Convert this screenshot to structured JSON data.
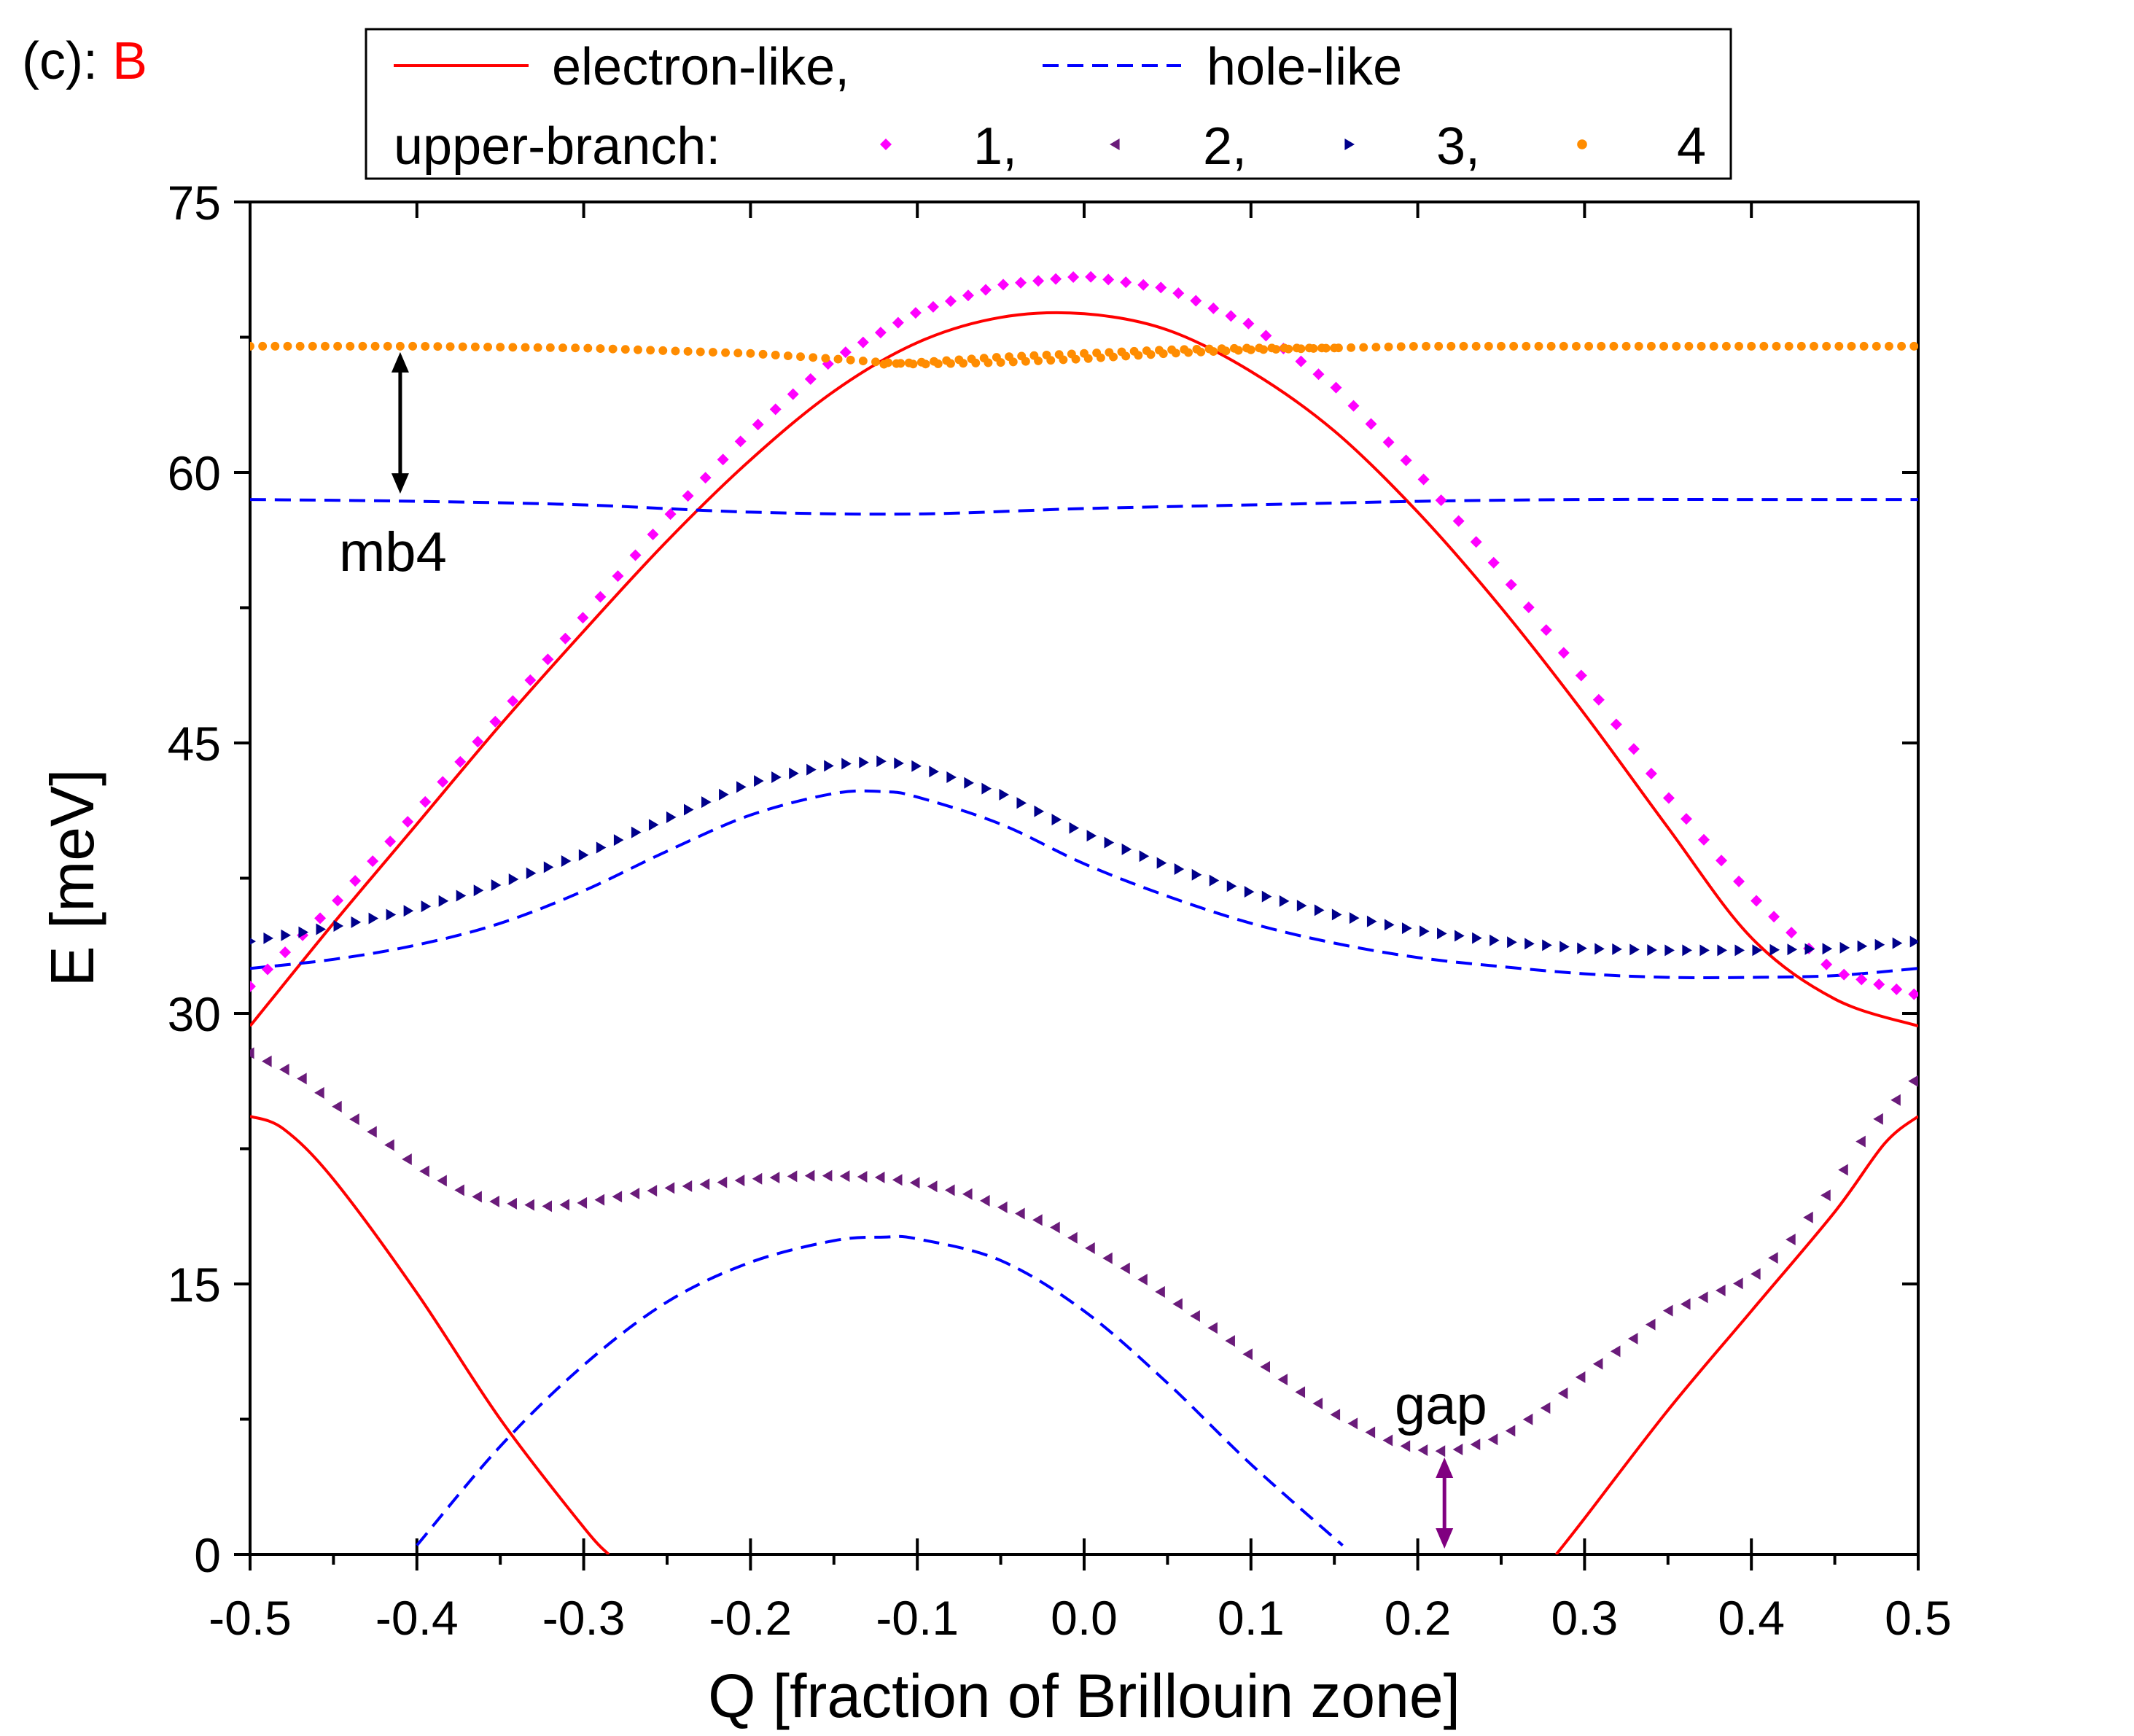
{
  "panel": {
    "prefix": "(c): ",
    "name": "B"
  },
  "colors": {
    "electron": "#ff0000",
    "hole": "#0000ff",
    "upper1": "#ff00ff",
    "upper2": "#6a1b7a",
    "upper3": "#00008b",
    "upper4": "#ff8c00",
    "gapArrow": "#800080",
    "axis": "#000000",
    "panelName": "#ff0000"
  },
  "legend": {
    "electron_label": "electron-like,",
    "hole_label": "hole-like",
    "upper_branch_label": "upper-branch:",
    "upper_items": [
      "1,",
      "2,",
      "3,",
      "4"
    ]
  },
  "annotations": {
    "mb4": "mb4",
    "gap": "gap"
  },
  "chart_data": {
    "type": "line",
    "title": "",
    "xlabel": "Q [fraction of Brillouin zone]",
    "ylabel": "E [meV]",
    "xlim": [
      -0.5,
      0.5
    ],
    "ylim": [
      0,
      75
    ],
    "xticks": [
      -0.5,
      -0.4,
      -0.3,
      -0.2,
      -0.1,
      0.0,
      0.1,
      0.2,
      0.3,
      0.4,
      0.5
    ],
    "xtick_labels": [
      "-0.5",
      "-0.4",
      "-0.3",
      "-0.2",
      "-0.1",
      "0.0",
      "0.1",
      "0.2",
      "0.3",
      "0.4",
      "0.5"
    ],
    "yticks": [
      0,
      15,
      30,
      45,
      60,
      75
    ],
    "ytick_labels": [
      "0",
      "15",
      "30",
      "45",
      "60",
      "75"
    ],
    "series": [
      {
        "name": "electron-like (upper)",
        "kind": "electron",
        "style": "solid",
        "x": [
          -0.5,
          -0.45,
          -0.4,
          -0.35,
          -0.3,
          -0.25,
          -0.2,
          -0.15,
          -0.1,
          -0.05,
          0.0,
          0.05,
          0.1,
          0.15,
          0.2,
          0.25,
          0.3,
          0.35,
          0.4,
          0.45,
          0.5
        ],
        "y": [
          29.3,
          35.0,
          40.5,
          46.0,
          51.2,
          56.2,
          60.7,
          64.5,
          67.2,
          68.6,
          68.8,
          67.9,
          65.6,
          62.3,
          57.8,
          52.5,
          46.6,
          40.3,
          34.2,
          30.8,
          29.3
        ]
      },
      {
        "name": "electron-like (lower left)",
        "kind": "electron",
        "style": "solid",
        "x": [
          -0.5,
          -0.48,
          -0.45,
          -0.4,
          -0.35,
          -0.3,
          -0.285
        ],
        "y": [
          24.3,
          23.6,
          20.8,
          14.5,
          7.5,
          1.5,
          0.0
        ]
      },
      {
        "name": "electron-like (lower right)",
        "kind": "electron",
        "style": "solid",
        "x": [
          0.283,
          0.3,
          0.35,
          0.4,
          0.45,
          0.48,
          0.5
        ],
        "y": [
          0.0,
          2.0,
          8.0,
          13.5,
          19.0,
          22.8,
          24.3
        ]
      },
      {
        "name": "hole-like (mb4)",
        "kind": "hole",
        "style": "dashed",
        "x": [
          -0.5,
          -0.4,
          -0.3,
          -0.2,
          -0.1,
          0.0,
          0.1,
          0.2,
          0.3,
          0.4,
          0.5
        ],
        "y": [
          58.5,
          58.4,
          58.2,
          57.8,
          57.7,
          58.0,
          58.2,
          58.4,
          58.5,
          58.5,
          58.5
        ]
      },
      {
        "name": "hole-like (middle)",
        "kind": "hole",
        "style": "dashed",
        "x": [
          -0.5,
          -0.45,
          -0.4,
          -0.35,
          -0.3,
          -0.25,
          -0.2,
          -0.15,
          -0.12,
          -0.1,
          -0.05,
          0.0,
          0.05,
          0.1,
          0.15,
          0.2,
          0.25,
          0.3,
          0.35,
          0.4,
          0.45,
          0.5
        ],
        "y": [
          32.5,
          33.0,
          33.8,
          35.0,
          36.8,
          39.0,
          41.0,
          42.2,
          42.3,
          42.0,
          40.5,
          38.3,
          36.5,
          35.0,
          33.9,
          33.1,
          32.6,
          32.2,
          32.0,
          32.0,
          32.1,
          32.5
        ]
      },
      {
        "name": "hole-like (lower)",
        "kind": "hole",
        "style": "dashed",
        "x": [
          -0.4,
          -0.35,
          -0.3,
          -0.25,
          -0.2,
          -0.15,
          -0.12,
          -0.1,
          -0.05,
          0.0,
          0.05,
          0.1,
          0.155
        ],
        "y": [
          0.5,
          6.0,
          10.5,
          14.0,
          16.2,
          17.4,
          17.6,
          17.5,
          16.3,
          13.5,
          9.5,
          5.0,
          0.5
        ]
      },
      {
        "name": "upper-branch 1",
        "kind": "upper1",
        "style": "markers",
        "marker": "diamond",
        "x": [
          -0.5,
          -0.45,
          -0.4,
          -0.35,
          -0.3,
          -0.25,
          -0.2,
          -0.15,
          -0.1,
          -0.05,
          0.0,
          0.05,
          0.1,
          0.15,
          0.2,
          0.25,
          0.3,
          0.35,
          0.4,
          0.45,
          0.5
        ],
        "y": [
          31.5,
          36.0,
          41.2,
          46.5,
          52.0,
          57.5,
          62.3,
          66.3,
          68.9,
          70.4,
          70.9,
          70.2,
          68.2,
          64.8,
          60.0,
          54.5,
          48.5,
          42.0,
          36.5,
          32.3,
          31.0
        ]
      },
      {
        "name": "upper-branch 2",
        "kind": "upper2",
        "style": "markers",
        "marker": "triangle-left",
        "x": [
          -0.5,
          -0.47,
          -0.45,
          -0.42,
          -0.4,
          -0.37,
          -0.35,
          -0.32,
          -0.3,
          -0.27,
          -0.25,
          -0.22,
          -0.2,
          -0.17,
          -0.15,
          -0.12,
          -0.1,
          -0.07,
          -0.05,
          -0.02,
          0.0,
          0.03,
          0.05,
          0.08,
          0.1,
          0.13,
          0.15,
          0.18,
          0.2,
          0.22,
          0.25,
          0.28,
          0.3,
          0.33,
          0.35,
          0.37,
          0.4,
          0.42,
          0.45,
          0.47,
          0.5
        ],
        "y": [
          27.8,
          26.5,
          25.0,
          23.0,
          21.5,
          20.0,
          19.5,
          19.3,
          19.5,
          20.0,
          20.3,
          20.6,
          20.8,
          21.0,
          21.0,
          20.9,
          20.6,
          20.0,
          19.3,
          18.3,
          17.2,
          15.6,
          14.3,
          12.4,
          11.0,
          9.0,
          7.8,
          6.4,
          5.8,
          5.7,
          6.5,
          8.3,
          10.0,
          12.0,
          13.5,
          14.2,
          15.3,
          17.0,
          20.5,
          23.5,
          26.5
        ]
      },
      {
        "name": "upper-branch 3",
        "kind": "upper3",
        "style": "markers",
        "marker": "triangle-right",
        "x": [
          -0.5,
          -0.45,
          -0.4,
          -0.35,
          -0.3,
          -0.25,
          -0.2,
          -0.15,
          -0.12,
          -0.1,
          -0.05,
          0.0,
          0.05,
          0.1,
          0.15,
          0.2,
          0.25,
          0.3,
          0.35,
          0.4,
          0.45,
          0.5
        ],
        "y": [
          34.0,
          34.8,
          35.8,
          37.2,
          38.8,
          40.8,
          42.8,
          43.8,
          44.0,
          43.7,
          42.2,
          40.0,
          38.2,
          36.7,
          35.5,
          34.6,
          34.0,
          33.6,
          33.5,
          33.5,
          33.6,
          34.0
        ]
      },
      {
        "name": "upper-branch 4",
        "kind": "upper4",
        "style": "markers",
        "marker": "circle",
        "x": [
          -0.5,
          -0.4,
          -0.3,
          -0.2,
          -0.15,
          -0.12,
          -0.1,
          -0.05,
          0.0,
          0.05,
          0.1,
          0.15,
          0.2,
          0.3,
          0.4,
          0.5
        ],
        "y": [
          67.0,
          67.0,
          66.9,
          66.6,
          66.3,
          66.1,
          66.0,
          66.1,
          66.3,
          66.6,
          66.8,
          66.9,
          67.0,
          67.0,
          67.0,
          67.0
        ]
      },
      {
        "name": "upper-branch 4 (second crossing)",
        "kind": "upper4",
        "style": "markers",
        "marker": "circle",
        "x": [
          -0.12,
          -0.1,
          -0.05,
          0.0,
          0.05,
          0.1,
          0.15
        ],
        "y": [
          66.0,
          66.1,
          66.4,
          66.6,
          66.8,
          66.9,
          66.9
        ]
      }
    ],
    "annotation_arrows": [
      {
        "label": "mb4",
        "x": -0.41,
        "y_from": 58.5,
        "y_to": 67.0
      },
      {
        "label": "gap",
        "x": 0.216,
        "y_from": 0.0,
        "y_to": 5.7
      }
    ]
  }
}
